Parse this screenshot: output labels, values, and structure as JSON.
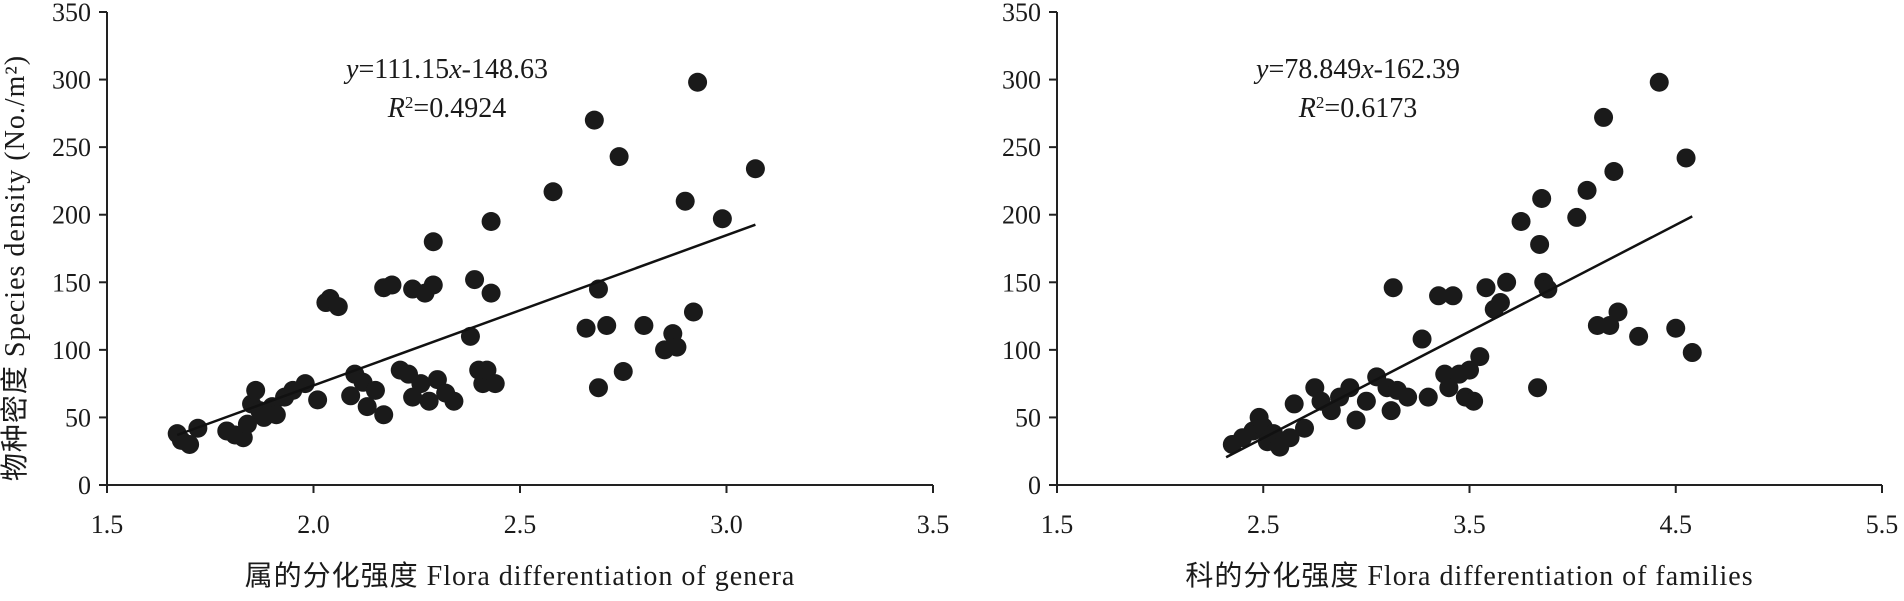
{
  "y_axis_label": "物种密度 Species density (No./m²)",
  "chart_data": [
    {
      "type": "scatter",
      "xlabel": "属的分化强度 Flora differentiation of genera",
      "ylabel": "物种密度 Species density (No./m²)",
      "xlim": [
        1.5,
        3.5
      ],
      "ylim": [
        0,
        350
      ],
      "x_ticks": [
        "1.5",
        "2.0",
        "2.5",
        "3.0",
        "3.5"
      ],
      "y_ticks": [
        "0",
        "50",
        "100",
        "150",
        "200",
        "250",
        "300",
        "350"
      ],
      "equation_prefix": "y",
      "equation_text": "=111.15",
      "equation_var": "x",
      "equation_suffix": "-148.63",
      "r2_prefix": "R",
      "r2_sup": "2",
      "r2_value": "=0.4924",
      "trendline": {
        "slope": 111.15,
        "intercept": -148.63,
        "x_range": [
          1.67,
          3.07
        ]
      },
      "points": [
        [
          1.67,
          38
        ],
        [
          1.68,
          33
        ],
        [
          1.7,
          30
        ],
        [
          1.72,
          42
        ],
        [
          1.79,
          40
        ],
        [
          1.81,
          37
        ],
        [
          1.83,
          35
        ],
        [
          1.84,
          45
        ],
        [
          1.85,
          60
        ],
        [
          1.86,
          70
        ],
        [
          1.87,
          55
        ],
        [
          1.88,
          50
        ],
        [
          1.9,
          58
        ],
        [
          1.91,
          52
        ],
        [
          1.93,
          65
        ],
        [
          1.95,
          70
        ],
        [
          1.98,
          75
        ],
        [
          2.01,
          63
        ],
        [
          2.03,
          135
        ],
        [
          2.04,
          138
        ],
        [
          2.06,
          132
        ],
        [
          2.09,
          66
        ],
        [
          2.1,
          82
        ],
        [
          2.12,
          76
        ],
        [
          2.13,
          58
        ],
        [
          2.15,
          70
        ],
        [
          2.17,
          52
        ],
        [
          2.17,
          146
        ],
        [
          2.19,
          148
        ],
        [
          2.21,
          85
        ],
        [
          2.23,
          82
        ],
        [
          2.24,
          65
        ],
        [
          2.24,
          145
        ],
        [
          2.26,
          75
        ],
        [
          2.27,
          142
        ],
        [
          2.28,
          62
        ],
        [
          2.29,
          148
        ],
        [
          2.29,
          180
        ],
        [
          2.3,
          78
        ],
        [
          2.32,
          68
        ],
        [
          2.34,
          62
        ],
        [
          2.38,
          110
        ],
        [
          2.39,
          152
        ],
        [
          2.4,
          85
        ],
        [
          2.41,
          75
        ],
        [
          2.42,
          85
        ],
        [
          2.43,
          142
        ],
        [
          2.43,
          195
        ],
        [
          2.44,
          75
        ],
        [
          2.58,
          217
        ],
        [
          2.66,
          116
        ],
        [
          2.68,
          270
        ],
        [
          2.69,
          145
        ],
        [
          2.69,
          72
        ],
        [
          2.71,
          118
        ],
        [
          2.74,
          243
        ],
        [
          2.75,
          84
        ],
        [
          2.8,
          118
        ],
        [
          2.85,
          100
        ],
        [
          2.87,
          112
        ],
        [
          2.88,
          102
        ],
        [
          2.9,
          210
        ],
        [
          2.92,
          128
        ],
        [
          2.93,
          298
        ],
        [
          2.99,
          197
        ],
        [
          3.07,
          234
        ]
      ]
    },
    {
      "type": "scatter",
      "xlabel": "科的分化强度 Flora differentiation of families",
      "ylabel": "",
      "xlim": [
        1.5,
        5.5
      ],
      "ylim": [
        0,
        350
      ],
      "x_ticks": [
        "1.5",
        "2.5",
        "3.5",
        "4.5",
        "5.5"
      ],
      "y_ticks": [
        "0",
        "50",
        "100",
        "150",
        "200",
        "250",
        "300",
        "350"
      ],
      "equation_prefix": "y",
      "equation_text": "=78.849",
      "equation_var": "x",
      "equation_suffix": "-162.39",
      "r2_prefix": "R",
      "r2_sup": "2",
      "r2_value": "=0.6173",
      "trendline": {
        "slope": 78.849,
        "intercept": -162.39,
        "x_range": [
          2.32,
          4.58
        ]
      },
      "points": [
        [
          2.35,
          30
        ],
        [
          2.4,
          35
        ],
        [
          2.45,
          40
        ],
        [
          2.48,
          50
        ],
        [
          2.5,
          43
        ],
        [
          2.52,
          32
        ],
        [
          2.55,
          38
        ],
        [
          2.58,
          28
        ],
        [
          2.63,
          35
        ],
        [
          2.65,
          60
        ],
        [
          2.7,
          42
        ],
        [
          2.75,
          72
        ],
        [
          2.78,
          62
        ],
        [
          2.83,
          55
        ],
        [
          2.87,
          65
        ],
        [
          2.92,
          72
        ],
        [
          2.95,
          48
        ],
        [
          3.0,
          62
        ],
        [
          3.05,
          80
        ],
        [
          3.1,
          72
        ],
        [
          3.12,
          55
        ],
        [
          3.13,
          146
        ],
        [
          3.15,
          70
        ],
        [
          3.2,
          65
        ],
        [
          3.27,
          108
        ],
        [
          3.3,
          65
        ],
        [
          3.35,
          140
        ],
        [
          3.38,
          82
        ],
        [
          3.4,
          72
        ],
        [
          3.42,
          140
        ],
        [
          3.45,
          82
        ],
        [
          3.48,
          65
        ],
        [
          3.5,
          85
        ],
        [
          3.52,
          62
        ],
        [
          3.55,
          95
        ],
        [
          3.58,
          146
        ],
        [
          3.62,
          130
        ],
        [
          3.65,
          135
        ],
        [
          3.68,
          150
        ],
        [
          3.75,
          195
        ],
        [
          3.83,
          72
        ],
        [
          3.84,
          178
        ],
        [
          3.85,
          212
        ],
        [
          3.86,
          150
        ],
        [
          3.88,
          145
        ],
        [
          4.02,
          198
        ],
        [
          4.07,
          218
        ],
        [
          4.12,
          118
        ],
        [
          4.15,
          272
        ],
        [
          4.18,
          118
        ],
        [
          4.2,
          232
        ],
        [
          4.22,
          128
        ],
        [
          4.32,
          110
        ],
        [
          4.42,
          298
        ],
        [
          4.5,
          116
        ],
        [
          4.55,
          242
        ],
        [
          4.58,
          98
        ]
      ]
    }
  ]
}
